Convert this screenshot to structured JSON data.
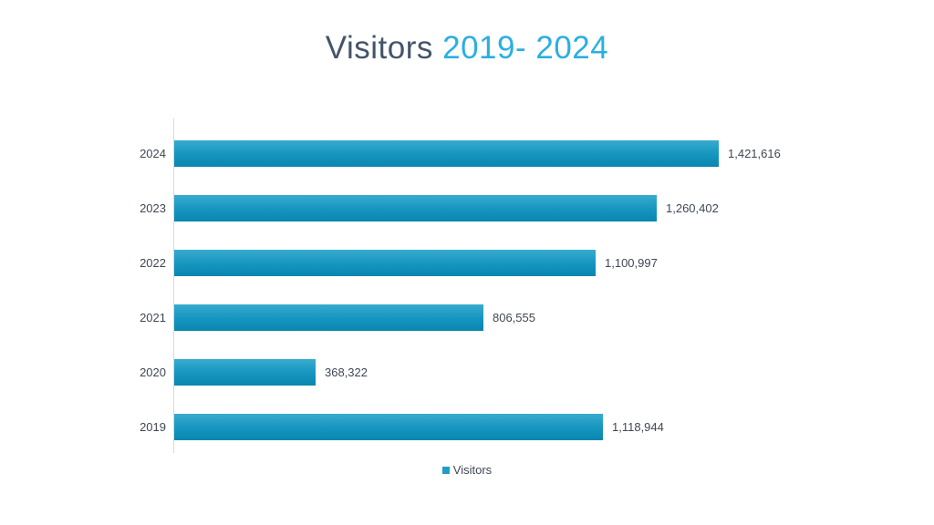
{
  "title": {
    "main": "Visitors",
    "accent": "2019- 2024",
    "full": "Visitors 2019- 2024"
  },
  "colors": {
    "title_main": "#44546A",
    "title_accent": "#2BAFE0",
    "bar_gradient_top": "#38ABCE",
    "bar_gradient_mid": "#1495BF",
    "bar_gradient_bottom": "#0A86AF",
    "axis_line": "#D9D9D9",
    "label_text": "#404754",
    "legend_swatch": "#1E9EC4",
    "background": "#FFFFFF"
  },
  "chart_data": {
    "type": "bar",
    "orientation": "horizontal",
    "title": "Visitors 2019- 2024",
    "xlabel": "",
    "ylabel": "",
    "grid": false,
    "legend_position": "bottom-center",
    "categories": [
      "2024",
      "2023",
      "2022",
      "2021",
      "2020",
      "2019"
    ],
    "values": [
      1421616,
      1260402,
      1100997,
      806555,
      368322,
      1118944
    ],
    "value_labels": [
      "1,421,616",
      "1,260,402",
      "1,100,997",
      "806,555",
      "368,322",
      "1,118,944"
    ],
    "series_name": "Visitors",
    "legend": [
      {
        "label": "Visitors"
      }
    ]
  }
}
